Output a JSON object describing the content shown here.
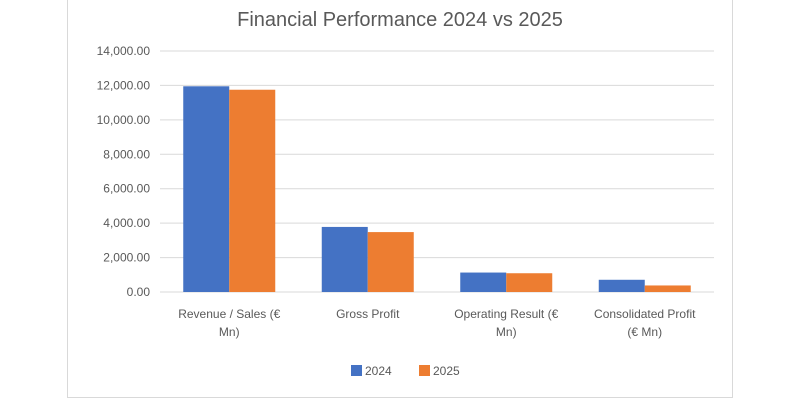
{
  "chart_data": {
    "type": "bar",
    "title": "Financial Performance 2024 vs 2025",
    "categories": [
      [
        "Revenue / Sales (€",
        "Mn)"
      ],
      [
        "Gross Profit"
      ],
      [
        "Operating Result (€",
        "Mn)"
      ],
      [
        "Consolidated Profit",
        "(€ Mn)"
      ]
    ],
    "series": [
      {
        "name": "2024",
        "color": "#4472c4",
        "values": [
          11950,
          3780,
          1130,
          710
        ]
      },
      {
        "name": "2025",
        "color": "#ed7d31",
        "values": [
          11750,
          3480,
          1090,
          380
        ]
      }
    ],
    "y_ticks": [
      "0.00",
      "2,000.00",
      "4,000.00",
      "6,000.00",
      "8,000.00",
      "10,000.00",
      "12,000.00",
      "14,000.00"
    ],
    "ylim": [
      0,
      14000
    ],
    "grid": true,
    "legend_position": "bottom",
    "xlabel": "",
    "ylabel": ""
  }
}
